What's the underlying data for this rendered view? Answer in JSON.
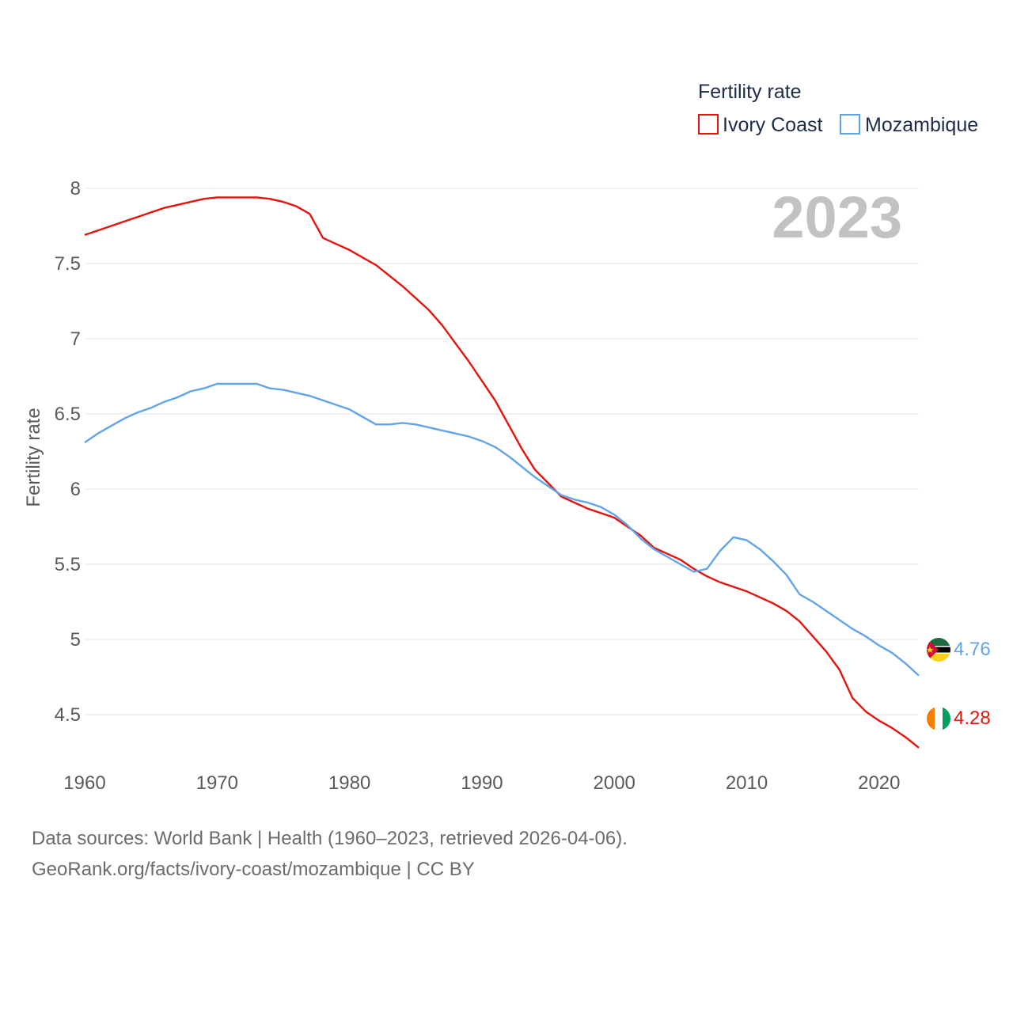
{
  "chart_data": {
    "type": "line",
    "title": "Fertility rate",
    "ylabel": "Fertility rate",
    "xlabel": "",
    "year_stamp": "2023",
    "xlim": [
      1960,
      2023
    ],
    "ylim": [
      4.2,
      8.0
    ],
    "x_ticks": [
      1960,
      1970,
      1980,
      1990,
      2000,
      2010,
      2020
    ],
    "y_ticks": [
      "4.5",
      "5",
      "5.5",
      "6",
      "6.5",
      "7",
      "7.5",
      "8"
    ],
    "legend": [
      "Ivory Coast",
      "Mozambique"
    ],
    "series": [
      {
        "name": "Ivory Coast",
        "color": "#e8120c",
        "end_label": "4.28",
        "x": [
          1960,
          1961,
          1962,
          1963,
          1964,
          1965,
          1966,
          1967,
          1968,
          1969,
          1970,
          1971,
          1972,
          1973,
          1974,
          1975,
          1976,
          1977,
          1978,
          1979,
          1980,
          1981,
          1982,
          1983,
          1984,
          1985,
          1986,
          1987,
          1988,
          1989,
          1990,
          1991,
          1992,
          1993,
          1994,
          1995,
          1996,
          1997,
          1998,
          1999,
          2000,
          2001,
          2002,
          2003,
          2004,
          2005,
          2006,
          2007,
          2008,
          2009,
          2010,
          2011,
          2012,
          2013,
          2014,
          2015,
          2016,
          2017,
          2018,
          2019,
          2020,
          2021,
          2022,
          2023
        ],
        "values": [
          7.69,
          7.72,
          7.75,
          7.78,
          7.81,
          7.84,
          7.87,
          7.89,
          7.91,
          7.93,
          7.94,
          7.94,
          7.94,
          7.94,
          7.93,
          7.91,
          7.88,
          7.83,
          7.67,
          7.63,
          7.59,
          7.54,
          7.49,
          7.42,
          7.35,
          7.27,
          7.19,
          7.09,
          6.97,
          6.85,
          6.72,
          6.59,
          6.43,
          6.27,
          6.13,
          6.04,
          5.95,
          5.91,
          5.87,
          5.84,
          5.81,
          5.75,
          5.69,
          5.61,
          5.57,
          5.53,
          5.47,
          5.42,
          5.38,
          5.35,
          5.32,
          5.28,
          5.24,
          5.19,
          5.12,
          5.02,
          4.92,
          4.8,
          4.61,
          4.52,
          4.46,
          4.41,
          4.35,
          4.28
        ]
      },
      {
        "name": "Mozambique",
        "color": "#62a4e8",
        "end_label": "4.76",
        "x": [
          1960,
          1961,
          1962,
          1963,
          1964,
          1965,
          1966,
          1967,
          1968,
          1969,
          1970,
          1971,
          1972,
          1973,
          1974,
          1975,
          1976,
          1977,
          1978,
          1979,
          1980,
          1981,
          1982,
          1983,
          1984,
          1985,
          1986,
          1987,
          1988,
          1989,
          1990,
          1991,
          1992,
          1993,
          1994,
          1995,
          1996,
          1997,
          1998,
          1999,
          2000,
          2001,
          2002,
          2003,
          2004,
          2005,
          2006,
          2007,
          2008,
          2009,
          2010,
          2011,
          2012,
          2013,
          2014,
          2015,
          2016,
          2017,
          2018,
          2019,
          2020,
          2021,
          2022,
          2023
        ],
        "values": [
          6.31,
          6.37,
          6.42,
          6.47,
          6.51,
          6.54,
          6.58,
          6.61,
          6.65,
          6.67,
          6.7,
          6.7,
          6.7,
          6.7,
          6.67,
          6.66,
          6.64,
          6.62,
          6.59,
          6.56,
          6.53,
          6.48,
          6.43,
          6.43,
          6.44,
          6.43,
          6.41,
          6.39,
          6.37,
          6.35,
          6.32,
          6.28,
          6.22,
          6.15,
          6.08,
          6.02,
          5.96,
          5.93,
          5.91,
          5.88,
          5.83,
          5.76,
          5.67,
          5.6,
          5.55,
          5.5,
          5.45,
          5.47,
          5.59,
          5.68,
          5.66,
          5.6,
          5.52,
          5.43,
          5.3,
          5.25,
          5.19,
          5.13,
          5.07,
          5.02,
          4.96,
          4.91,
          4.84,
          4.76
        ]
      }
    ]
  },
  "source": {
    "line1": "Data sources: World Bank | Health (1960–2023, retrieved 2026-04-06).",
    "line2": "GeoRank.org/facts/ivory-coast/mozambique | CC BY"
  }
}
